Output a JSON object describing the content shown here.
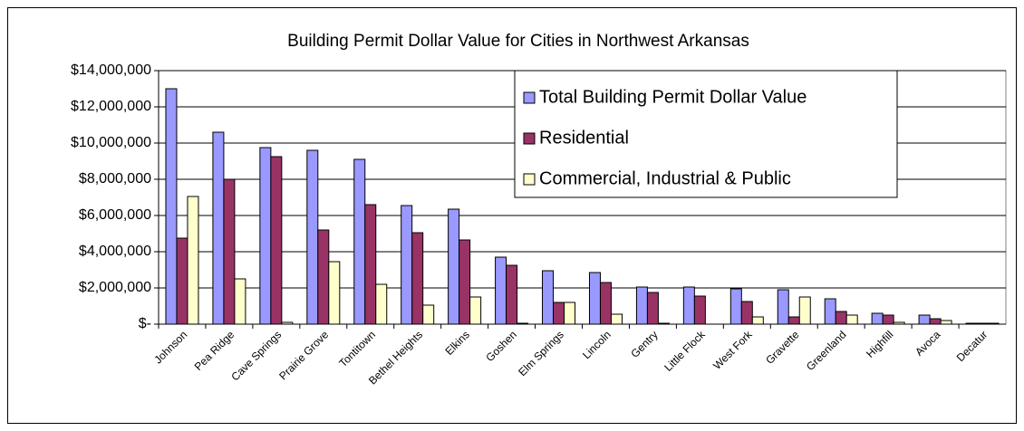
{
  "chart_data": {
    "type": "bar",
    "title": "Building Permit Dollar Value for Cities in Northwest Arkansas",
    "categories": [
      "Johnson",
      "Pea Ridge",
      "Cave Springs",
      "Prairie Grove",
      "Tontitown",
      "Bethel Heights",
      "Elkins",
      "Goshen",
      "Elm Springs",
      "Lincoln",
      "Gentry",
      "Little Flock",
      "West Fork",
      "Gravette",
      "Greenland",
      "Highfill",
      "Avoca",
      "Decatur"
    ],
    "series": [
      {
        "name": "Total Building Permit Dollar Value",
        "color": "#9999ff",
        "values": [
          13000000,
          10600000,
          9750000,
          9600000,
          9100000,
          6550000,
          6350000,
          3700000,
          2950000,
          2850000,
          2050000,
          2050000,
          1950000,
          1900000,
          1400000,
          600000,
          500000,
          50000
        ]
      },
      {
        "name": "Residential",
        "color": "#993366",
        "values": [
          4750000,
          8000000,
          9250000,
          5200000,
          6600000,
          5050000,
          4650000,
          3250000,
          1200000,
          2300000,
          1750000,
          1550000,
          1250000,
          400000,
          700000,
          500000,
          300000,
          50000
        ]
      },
      {
        "name": "Commercial, Industrial & Public",
        "color": "#ffffcc",
        "values": [
          7050000,
          2500000,
          100000,
          3450000,
          2200000,
          1050000,
          1500000,
          50000,
          1200000,
          550000,
          50000,
          0,
          400000,
          1500000,
          500000,
          100000,
          200000,
          50000
        ]
      }
    ],
    "ylim": [
      0,
      14000000
    ],
    "yticks": [
      {
        "value": 0,
        "label": "$-"
      },
      {
        "value": 2000000,
        "label": "$2,000,000"
      },
      {
        "value": 4000000,
        "label": "$4,000,000"
      },
      {
        "value": 6000000,
        "label": "$6,000,000"
      },
      {
        "value": 8000000,
        "label": "$8,000,000"
      },
      {
        "value": 10000000,
        "label": "$10,000,000"
      },
      {
        "value": 12000000,
        "label": "$12,000,000"
      },
      {
        "value": 14000000,
        "label": "$14,000,000"
      }
    ],
    "grid": true,
    "legend": "upper right"
  }
}
